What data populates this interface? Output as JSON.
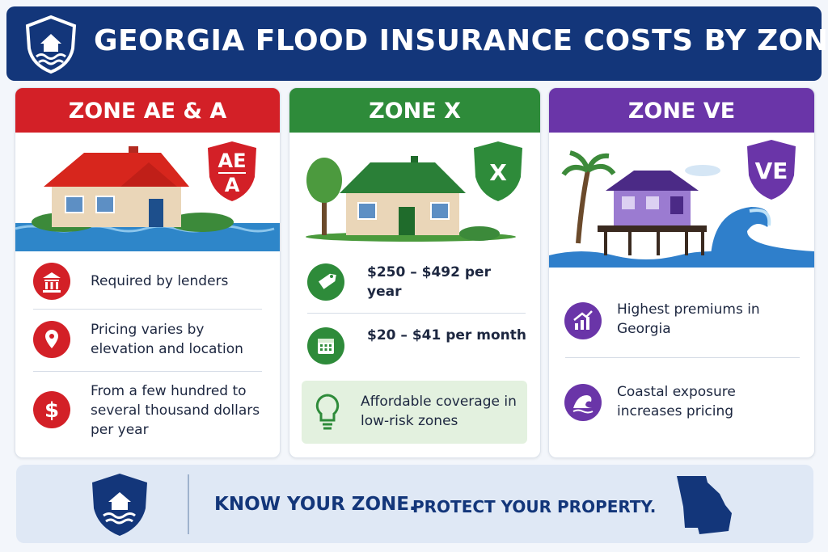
{
  "header": {
    "title": "GEORGIA FLOOD INSURANCE COSTS BY ZONE"
  },
  "cards": [
    {
      "title": "ZONE AE & A",
      "badge": [
        "AE",
        "A"
      ],
      "items": [
        "Required by lenders",
        "Pricing varies by elevation and location",
        "From a few hundred to several thousand dollars per year"
      ]
    },
    {
      "title": "ZONE X",
      "badge": [
        "X"
      ],
      "items": [
        "$250 – $492 per year",
        "$20 – $41 per month"
      ],
      "note": "Affordable coverage in low-risk zones"
    },
    {
      "title": "ZONE VE",
      "badge": [
        "VE"
      ],
      "items": [
        "Highest premiums in Georgia",
        "Coastal exposure increases pricing"
      ]
    }
  ],
  "footer": {
    "tagline_1": "KNOW YOUR ZONE.",
    "tagline_2": "PROTECT YOUR PROPERTY."
  }
}
